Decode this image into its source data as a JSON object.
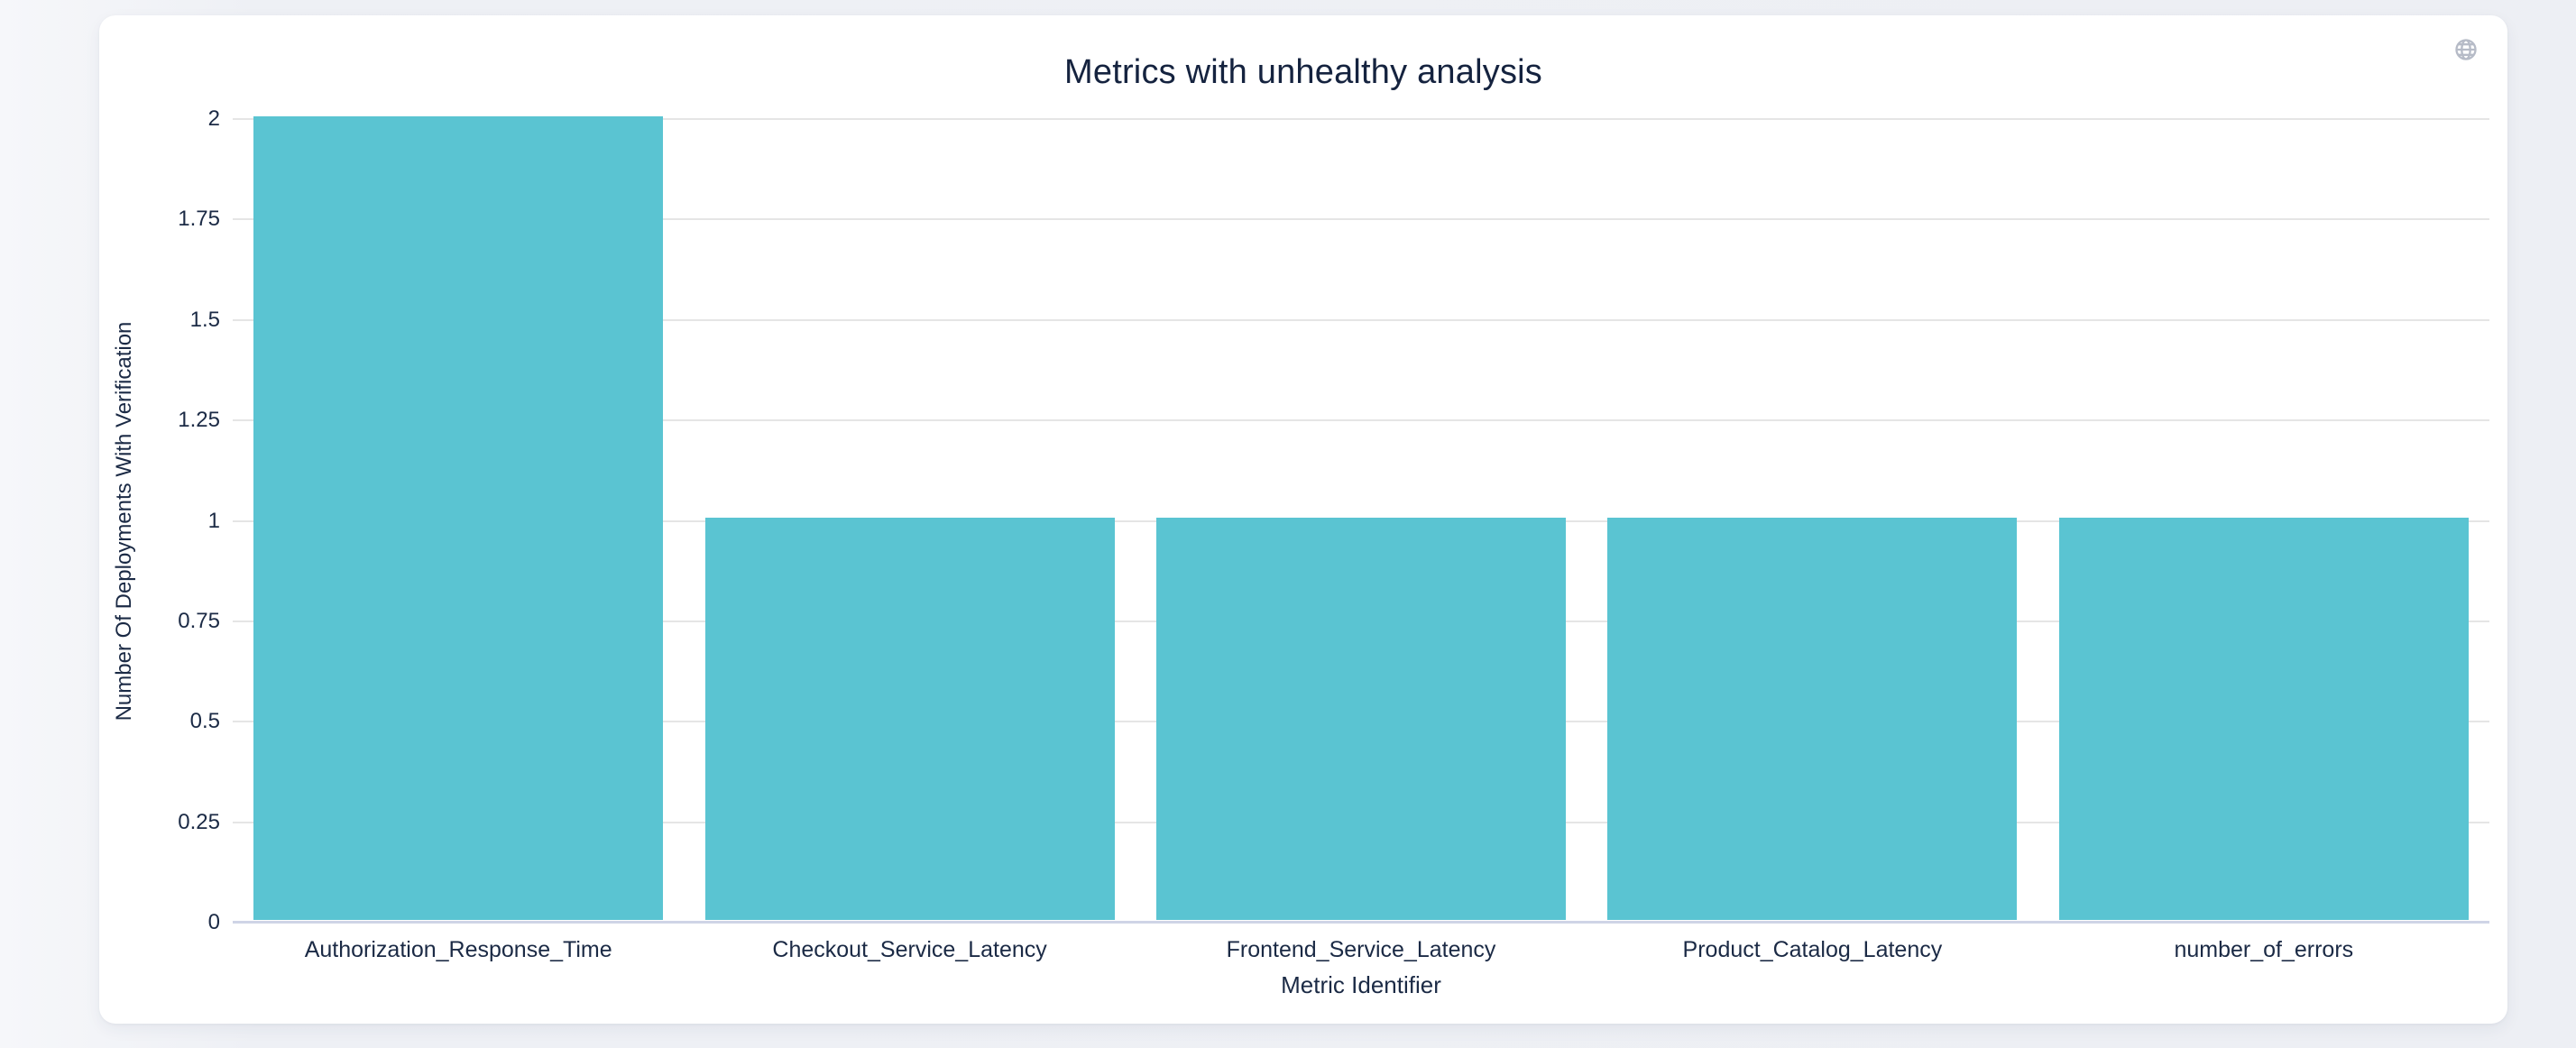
{
  "page": {
    "background_color": "#eef0f5"
  },
  "card": {
    "background_color": "#ffffff"
  },
  "icons": {
    "globe": {
      "label": "globe",
      "color": "#b6bbc7"
    }
  },
  "chart_data": {
    "type": "bar",
    "title": "Metrics with unhealthy analysis",
    "xlabel": "Metric Identifier",
    "ylabel": "Number Of Deployments With Verification",
    "categories": [
      "Authorization_Response_Time",
      "Checkout_Service_Latency",
      "Frontend_Service_Latency",
      "Product_Catalog_Latency",
      "number_of_errors"
    ],
    "values": [
      2,
      1,
      1,
      1,
      1
    ],
    "ylim": [
      0,
      2
    ],
    "yticks": [
      {
        "value": 0,
        "label": "0"
      },
      {
        "value": 0.25,
        "label": "0.25"
      },
      {
        "value": 0.5,
        "label": "0.5"
      },
      {
        "value": 0.75,
        "label": "0.75"
      },
      {
        "value": 1,
        "label": "1"
      },
      {
        "value": 1.25,
        "label": "1.25"
      },
      {
        "value": 1.5,
        "label": "1.5"
      },
      {
        "value": 1.75,
        "label": "1.75"
      },
      {
        "value": 2,
        "label": "2"
      }
    ],
    "grid": "horizontal",
    "legend": "none",
    "colors": {
      "bar": "#5ac4d2",
      "gridline": "#e5e5e5",
      "axis_baseline": "#cfd4e6",
      "label": "#1b2a45",
      "title": "#15233f"
    }
  }
}
